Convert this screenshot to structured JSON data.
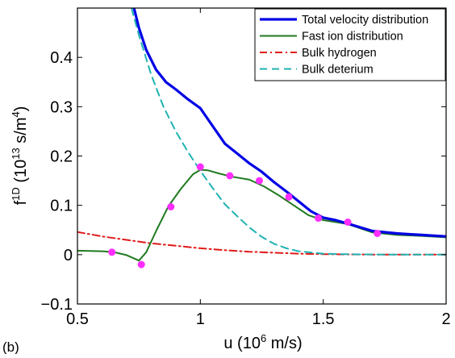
{
  "panel_label": "(b)",
  "chart_data": {
    "type": "line",
    "xlabel": {
      "base": "u (10",
      "sup": "6",
      "rest": " m/s)"
    },
    "ylabel": {
      "pre": "f",
      "pre_sup": "1D",
      "mid": " (10",
      "mid_sup": "13",
      "post": " s/m",
      "post_sup": "4",
      "end": ")"
    },
    "xlim": [
      0.5,
      2
    ],
    "ylim": [
      -0.1,
      0.5
    ],
    "xticks": [
      {
        "value": 0.5,
        "label": "0.5"
      },
      {
        "value": 1,
        "label": "1"
      },
      {
        "value": 1.5,
        "label": "1.5"
      },
      {
        "value": 2,
        "label": "2"
      }
    ],
    "yticks": [
      {
        "value": -0.1,
        "label": "−0.1"
      },
      {
        "value": 0,
        "label": "0"
      },
      {
        "value": 0.1,
        "label": "0.1"
      },
      {
        "value": 0.2,
        "label": "0.2"
      },
      {
        "value": 0.3,
        "label": "0.3"
      },
      {
        "value": 0.4,
        "label": "0.4"
      }
    ],
    "grid": false,
    "legend_position": "top-right",
    "series": [
      {
        "name": "Total velocity distribution",
        "color": "#0000e6",
        "dash": "solid",
        "x": [
          0.73,
          0.75,
          0.78,
          0.82,
          0.86,
          0.9,
          0.95,
          1.0,
          1.04,
          1.1,
          1.15,
          1.2,
          1.25,
          1.3,
          1.35,
          1.4,
          1.45,
          1.5,
          1.55,
          1.6,
          1.7,
          1.8,
          1.9,
          2.0
        ],
        "y": [
          0.5,
          0.46,
          0.415,
          0.375,
          0.35,
          0.335,
          0.315,
          0.297,
          0.268,
          0.225,
          0.205,
          0.185,
          0.168,
          0.147,
          0.128,
          0.108,
          0.088,
          0.075,
          0.07,
          0.063,
          0.048,
          0.043,
          0.04,
          0.037
        ]
      },
      {
        "name": "Fast ion distribution",
        "color": "#1f7a1f",
        "dash": "solid",
        "x": [
          0.5,
          0.6,
          0.65,
          0.7,
          0.75,
          0.78,
          0.82,
          0.87,
          0.92,
          0.97,
          1.0,
          1.03,
          1.08,
          1.13,
          1.2,
          1.26,
          1.32,
          1.38,
          1.44,
          1.5,
          1.6,
          1.7,
          1.8,
          1.9,
          2.0
        ],
        "y": [
          0.008,
          0.007,
          0.005,
          -0.001,
          -0.012,
          0.005,
          0.048,
          0.098,
          0.133,
          0.163,
          0.172,
          0.171,
          0.164,
          0.158,
          0.152,
          0.138,
          0.12,
          0.1,
          0.08,
          0.07,
          0.062,
          0.045,
          0.04,
          0.038,
          0.035
        ]
      },
      {
        "name": "Bulk hydrogen",
        "color": "#e01a1a",
        "dash": "dashdot",
        "x": [
          0.5,
          0.6,
          0.7,
          0.8,
          0.9,
          1.0,
          1.1,
          1.2,
          1.3,
          1.4,
          1.5,
          1.6,
          1.7,
          1.8,
          1.9,
          2.0
        ],
        "y": [
          0.046,
          0.037,
          0.03,
          0.023,
          0.018,
          0.013,
          0.009,
          0.006,
          0.004,
          0.002,
          0.001,
          0.0005,
          0.0002,
          0.0001,
          0,
          0
        ]
      },
      {
        "name": "Bulk deterium",
        "color": "#20b2b2",
        "dash": "dashed",
        "x": [
          0.72,
          0.75,
          0.8,
          0.85,
          0.9,
          0.95,
          1.0,
          1.05,
          1.1,
          1.15,
          1.2,
          1.25,
          1.3,
          1.35,
          1.4,
          1.5,
          1.6,
          1.7,
          1.8,
          1.9,
          2.0
        ],
        "y": [
          0.5,
          0.445,
          0.365,
          0.3,
          0.25,
          0.208,
          0.17,
          0.135,
          0.102,
          0.078,
          0.055,
          0.036,
          0.022,
          0.013,
          0.007,
          0.002,
          0.0008,
          0.0003,
          0.0001,
          0,
          0
        ]
      }
    ],
    "markers": {
      "color": "#ff2eff",
      "x": [
        0.64,
        0.76,
        0.88,
        1.0,
        1.12,
        1.24,
        1.36,
        1.48,
        1.6,
        1.72
      ],
      "y": [
        0.005,
        -0.02,
        0.097,
        0.178,
        0.16,
        0.15,
        0.117,
        0.074,
        0.066,
        0.043
      ]
    }
  }
}
